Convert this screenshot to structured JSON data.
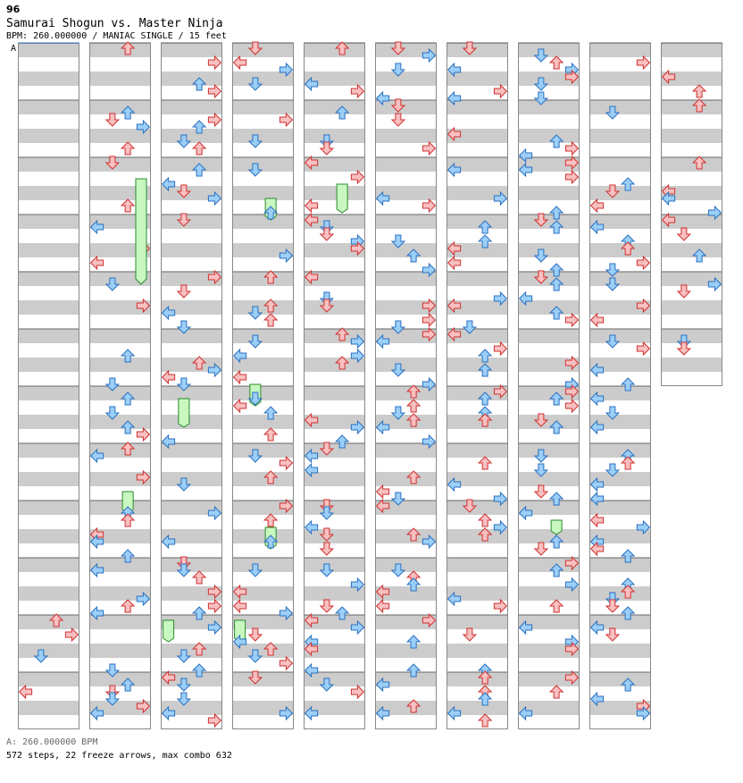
{
  "header": {
    "number": "96",
    "title": "Samurai Shogun vs. Master Ninja",
    "info": "BPM: 260.000000 / MANIAC SINGLE / 15 feet"
  },
  "marker": "A",
  "footer": {
    "bpm": "A: 260.000000 BPM",
    "stats": "572 steps, 22 freeze arrows, max combo 632"
  },
  "colors": {
    "stripe": "#cccccc",
    "column_bg": "#ffffff",
    "border": "#888888",
    "arrow_red": "#f8c0c0",
    "arrow_red_stroke": "#d03030",
    "arrow_blue": "#9ccff8",
    "arrow_blue_stroke": "#2a70c0",
    "freeze": "#c8f8c0",
    "freeze_stroke": "#2a8a2a"
  },
  "chart_data": {
    "type": "step-chart",
    "columns": 10,
    "measures_per_column": 12,
    "steps_total": 572,
    "freeze_total": 22,
    "max_combo": 632,
    "last_column_measures": 6
  }
}
